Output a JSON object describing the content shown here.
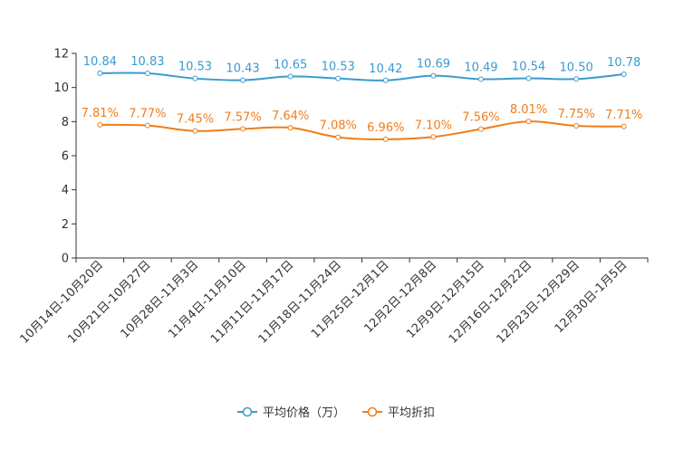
{
  "chart_data": {
    "type": "line",
    "title": "",
    "xlabel": "",
    "ylabel": "",
    "ylim": [
      0,
      12
    ],
    "yticks": [
      "0",
      "2",
      "4",
      "6",
      "8",
      "10",
      "12"
    ],
    "categories": [
      "10月14日-10月20日",
      "10月21日-10月27日",
      "10月28日-11月3日",
      "11月4日-11月10日",
      "11月11日-11月17日",
      "11月18日-11月24日",
      "11月25日-12月1日",
      "12月2日-12月8日",
      "12月9日-12月15日",
      "12月16日-12月22日",
      "12月23日-12月29日",
      "12月30日-1月5日"
    ],
    "series": [
      {
        "name": "平均价格（万）",
        "color": "#3a9bd0",
        "values": [
          10.84,
          10.83,
          10.53,
          10.43,
          10.65,
          10.53,
          10.42,
          10.69,
          10.49,
          10.54,
          10.5,
          10.78
        ],
        "labels": [
          "10.84",
          "10.83",
          "10.53",
          "10.43",
          "10.65",
          "10.53",
          "10.42",
          "10.69",
          "10.49",
          "10.54",
          "10.50",
          "10.78"
        ]
      },
      {
        "name": "平均折扣",
        "color": "#f07d1a",
        "values": [
          7.81,
          7.77,
          7.45,
          7.57,
          7.64,
          7.08,
          6.96,
          7.1,
          7.56,
          8.01,
          7.75,
          7.71
        ],
        "labels": [
          "7.81%",
          "7.77%",
          "7.45%",
          "7.57%",
          "7.64%",
          "7.08%",
          "6.96%",
          "7.10%",
          "7.56%",
          "8.01%",
          "7.75%",
          "7.71%"
        ]
      }
    ],
    "legend_position": "bottom-center",
    "grid": false
  }
}
